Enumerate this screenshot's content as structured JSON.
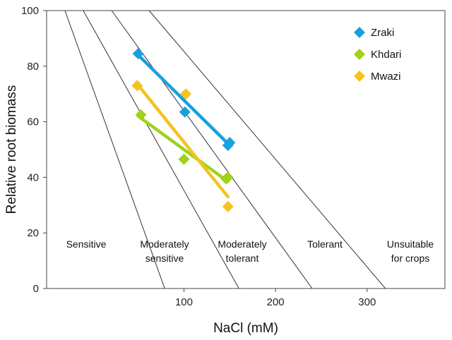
{
  "chart_data": {
    "type": "scatter",
    "title": "",
    "xlabel": "NaCl (mM)",
    "ylabel": "Relative root biomass",
    "xlim": [
      -50,
      385
    ],
    "ylim": [
      0,
      100
    ],
    "xticks": [
      100,
      200,
      300
    ],
    "yticks": [
      0,
      20,
      40,
      60,
      80,
      100
    ],
    "grid": false,
    "legend": "top-right",
    "series": [
      {
        "name": "Zraki",
        "color": "#1aa1dc",
        "points": [
          [
            50,
            84.5
          ],
          [
            101,
            63.5
          ],
          [
            150,
            52.5
          ],
          [
            148,
            51.5
          ]
        ],
        "fit": [
          [
            50,
            84
          ],
          [
            150,
            51.5
          ]
        ]
      },
      {
        "name": "Khdari",
        "color": "#9ed21b",
        "points": [
          [
            53,
            62.5
          ],
          [
            100,
            46.5
          ],
          [
            148,
            40
          ],
          [
            146,
            39.5
          ]
        ],
        "fit": [
          [
            50,
            62
          ],
          [
            148,
            38.5
          ]
        ]
      },
      {
        "name": "Mwazi",
        "color": "#f5c21f",
        "points": [
          [
            49,
            73
          ],
          [
            102,
            70
          ],
          [
            148,
            29.5
          ]
        ],
        "fit": [
          [
            48,
            74
          ],
          [
            148,
            33
          ]
        ]
      }
    ],
    "tolerance_boundaries": [
      {
        "x_at_y0": 79,
        "x_at_y100": -30
      },
      {
        "x_at_y0": 160,
        "x_at_y100": -10
      },
      {
        "x_at_y0": 240,
        "x_at_y100": 21
      },
      {
        "x_at_y0": 320,
        "x_at_y100": 62
      }
    ],
    "zones": [
      {
        "label_lines": [
          "Sensitive"
        ]
      },
      {
        "label_lines": [
          "Moderately",
          "sensitive"
        ]
      },
      {
        "label_lines": [
          "Moderately",
          "tolerant"
        ]
      },
      {
        "label_lines": [
          "Tolerant"
        ]
      },
      {
        "label_lines": [
          "Unsuitable",
          "for crops"
        ]
      }
    ]
  }
}
